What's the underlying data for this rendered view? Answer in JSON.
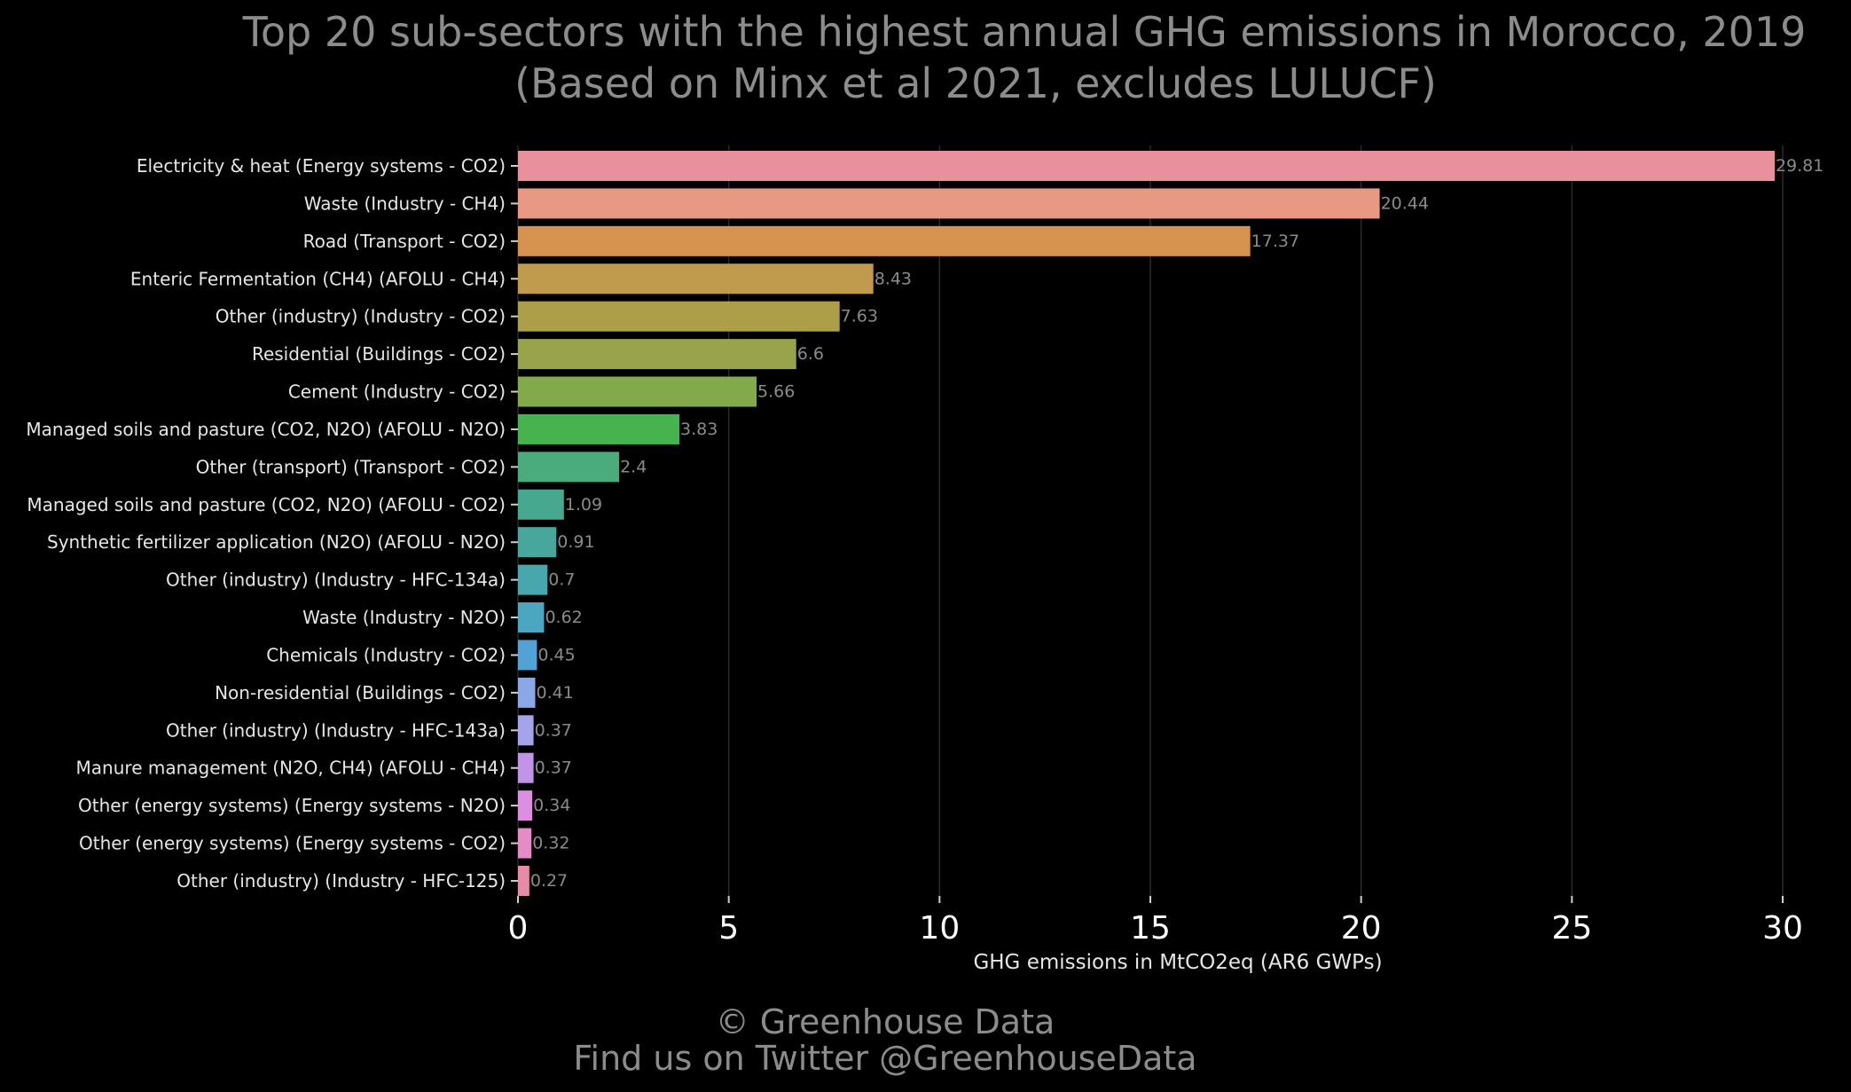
{
  "chart_data": {
    "type": "bar",
    "orientation": "horizontal",
    "title_line1": "Top 20 sub-sectors with the highest annual GHG emissions in Morocco, 2019",
    "title_line2": "(Based on Minx et al 2021, excludes LULUCF)",
    "xlabel": "GHG emissions in MtCO2eq (AR6 GWPs)",
    "ylabel": "",
    "xlim": [
      0,
      30
    ],
    "xticks": [
      0,
      5,
      10,
      15,
      20,
      25,
      30
    ],
    "grid": true,
    "categories": [
      "Electricity & heat (Energy systems - CO2)",
      "Waste (Industry - CH4)",
      "Road (Transport - CO2)",
      "Enteric Fermentation (CH4) (AFOLU - CH4)",
      "Other (industry) (Industry - CO2)",
      "Residential (Buildings - CO2)",
      "Cement (Industry - CO2)",
      "Managed soils and pasture (CO2, N2O) (AFOLU - N2O)",
      "Other (transport) (Transport - CO2)",
      "Managed soils and pasture (CO2, N2O) (AFOLU - CO2)",
      "Synthetic fertilizer application (N2O) (AFOLU - N2O)",
      "Other (industry) (Industry - HFC-134a)",
      "Waste (Industry - N2O)",
      "Chemicals (Industry - CO2)",
      "Non-residential (Buildings - CO2)",
      "Other (industry) (Industry - HFC-143a)",
      "Manure management (N2O, CH4) (AFOLU - CH4)",
      "Other (energy systems) (Energy systems - N2O)",
      "Other (energy systems) (Energy systems - CO2)",
      "Other (industry) (Industry - HFC-125)"
    ],
    "values": [
      29.81,
      20.44,
      17.37,
      8.43,
      7.63,
      6.6,
      5.66,
      3.83,
      2.4,
      1.09,
      0.91,
      0.7,
      0.62,
      0.45,
      0.41,
      0.37,
      0.37,
      0.34,
      0.32,
      0.27
    ],
    "value_labels": [
      "29.81",
      "20.44",
      "17.37",
      "8.43",
      "7.63",
      "6.6",
      "5.66",
      "3.83",
      "2.4",
      "1.09",
      "0.91",
      "0.7",
      "0.62",
      "0.45",
      "0.41",
      "0.37",
      "0.37",
      "0.34",
      "0.32",
      "0.27"
    ],
    "colors": [
      "#e8909c",
      "#e99883",
      "#d69350",
      "#c09b4e",
      "#ad9e4a",
      "#98a34c",
      "#82a94a",
      "#46b34e",
      "#4aab7c",
      "#46a88e",
      "#48a79d",
      "#48a7ac",
      "#4aa7bf",
      "#53a2d6",
      "#8ba8e6",
      "#a7a3ea",
      "#c194e6",
      "#dc8fe0",
      "#e48cc6",
      "#e78ba8"
    ]
  },
  "footer": {
    "line1": "© Greenhouse Data",
    "line2": "Find us on Twitter @GreenhouseData"
  }
}
